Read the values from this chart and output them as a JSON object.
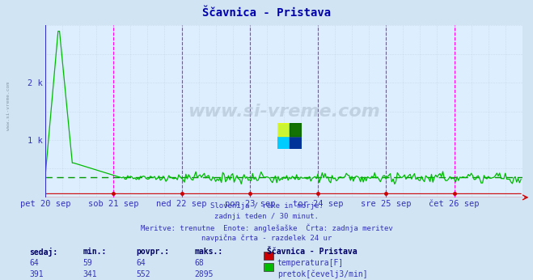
{
  "title": "Ščavnica - Pristava",
  "bg_color": "#d0e4f4",
  "plot_bg_color": "#ddeeff",
  "text_color": "#3333bb",
  "x_labels": [
    "pet 20 sep",
    "sob 21 sep",
    "ned 22 sep",
    "pon 23 sep",
    "tor 24 sep",
    "sre 25 sep",
    "čet 26 sep"
  ],
  "x_tick_indices": [
    0,
    48,
    96,
    144,
    192,
    240,
    288
  ],
  "total_points": 336,
  "ylim": [
    0,
    3000
  ],
  "ytick_positions": [
    1000,
    2000
  ],
  "ytick_labels": [
    "1 k",
    "2 k"
  ],
  "dashed_line_y": 350,
  "temp_color": "#cc0000",
  "flow_color": "#00bb00",
  "footer_lines": [
    "Slovenija / reke in morje.",
    "zadnji teden / 30 minut.",
    "Meritve: trenutne  Enote: anglešaške  Črta: zadnja meritev",
    "navpična črta - razdelek 24 ur"
  ],
  "legend_title": "Ščavnica - Pristava",
  "legend_items": [
    {
      "label": "temperatura[F]",
      "color": "#cc0000"
    },
    {
      "label": "pretok[čevelj3/min]",
      "color": "#00bb00"
    }
  ],
  "stat_headers": [
    "sedaj:",
    "min.:",
    "povpr.:",
    "maks.:"
  ],
  "stat_rows": [
    [
      64,
      59,
      64,
      68
    ],
    [
      391,
      341,
      552,
      2895
    ]
  ],
  "watermark": "www.si-vreme.com"
}
